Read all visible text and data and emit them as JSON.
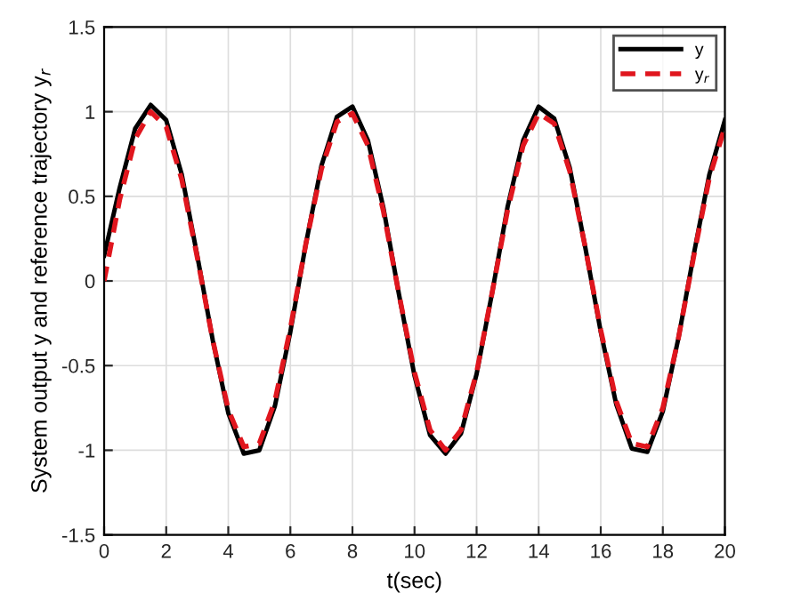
{
  "chart_data": {
    "type": "line",
    "xlabel": "t(sec)",
    "ylabel": "System output y and reference trajectory y$_{r}$",
    "x": [
      0,
      0.5,
      1,
      1.5,
      2,
      2.5,
      3,
      3.5,
      4,
      4.5,
      5,
      5.5,
      6,
      6.5,
      7,
      7.5,
      8,
      8.5,
      9,
      9.5,
      10,
      10.5,
      11,
      11.5,
      12,
      12.5,
      13,
      13.5,
      14,
      14.5,
      15,
      15.5,
      16,
      16.5,
      17,
      17.5,
      18,
      18.5,
      19,
      19.5,
      20
    ],
    "series": [
      {
        "name": "y",
        "color": "#000000",
        "line_style": "solid",
        "values": [
          0.15,
          0.55,
          0.9,
          1.04,
          0.95,
          0.63,
          0.15,
          -0.35,
          -0.78,
          -1.02,
          -1.0,
          -0.74,
          -0.3,
          0.22,
          0.68,
          0.97,
          1.03,
          0.83,
          0.43,
          -0.08,
          -0.56,
          -0.91,
          -1.02,
          -0.9,
          -0.55,
          -0.07,
          0.44,
          0.83,
          1.03,
          0.96,
          0.67,
          0.2,
          -0.3,
          -0.73,
          -0.99,
          -1.01,
          -0.77,
          -0.34,
          0.16,
          0.63,
          0.95
        ]
      },
      {
        "name": "y$_{r}$",
        "color": "#e0161e",
        "line_style": "dashed",
        "values": [
          0.0,
          0.48,
          0.84,
          1.0,
          0.91,
          0.6,
          0.14,
          -0.35,
          -0.76,
          -0.98,
          -0.96,
          -0.71,
          -0.28,
          0.22,
          0.66,
          0.94,
          0.99,
          0.8,
          0.41,
          -0.08,
          -0.54,
          -0.88,
          -1.0,
          -0.88,
          -0.54,
          -0.07,
          0.42,
          0.8,
          0.99,
          0.93,
          0.65,
          0.2,
          -0.29,
          -0.71,
          -0.96,
          -0.98,
          -0.75,
          -0.34,
          0.15,
          0.61,
          0.91
        ]
      }
    ],
    "xlim": [
      0,
      20
    ],
    "xticks": [
      0,
      2,
      4,
      6,
      8,
      10,
      12,
      14,
      16,
      18,
      20
    ],
    "ylim": [
      -1.5,
      1.5
    ],
    "yticks": [
      -1.5,
      -1,
      -0.5,
      0,
      0.5,
      1,
      1.5
    ],
    "grid": true,
    "legend": "top right",
    "marker": "none"
  }
}
